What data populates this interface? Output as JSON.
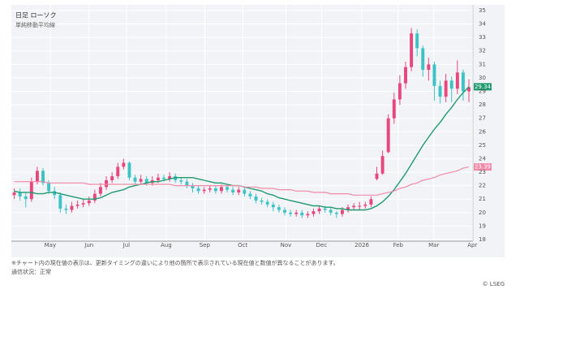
{
  "chart_data": {
    "type": "candlestick",
    "title": "日足 ローソク",
    "subtitle": "単純移動平均線",
    "up_color": "#e8467c",
    "down_color": "#3cc3c6",
    "open": [
      21.3,
      21.5,
      21.2,
      21.0,
      22.3,
      23.1,
      22.2,
      21.6,
      21.3,
      20.3,
      20.2,
      20.5,
      20.6,
      20.7,
      20.9,
      21.4,
      21.9,
      22.4,
      22.7,
      23.4,
      23.7,
      22.6,
      22.3,
      22.5,
      22.2,
      22.4,
      22.6,
      22.5,
      22.7,
      22.4,
      22.3,
      22.0,
      21.8,
      21.6,
      21.7,
      21.8,
      21.6,
      21.9,
      21.7,
      21.5,
      21.7,
      21.4,
      21.2,
      20.9,
      20.8,
      20.6,
      20.4,
      20.2,
      20.0,
      19.9,
      20.0,
      19.8,
      19.9,
      20.1,
      20.3,
      20.2,
      20.0,
      19.9,
      20.2,
      20.4,
      20.5,
      20.5,
      20.6,
      22.5,
      22.9,
      24.5,
      27.0,
      28.4,
      29.6,
      30.8,
      33.3,
      32.2,
      30.6,
      31.0,
      29.4,
      28.6,
      29.8,
      29.2,
      30.4,
      29.0
    ],
    "high": [
      21.8,
      21.8,
      21.5,
      22.6,
      23.4,
      23.3,
      22.4,
      21.9,
      21.5,
      20.6,
      20.8,
      20.9,
      21.0,
      21.2,
      21.7,
      22.2,
      22.7,
      23.0,
      23.7,
      24.0,
      23.8,
      22.8,
      22.8,
      22.7,
      22.7,
      22.9,
      22.8,
      23.0,
      22.9,
      22.6,
      22.5,
      22.2,
      22.0,
      21.9,
      22.0,
      22.0,
      22.1,
      22.1,
      21.9,
      21.9,
      21.9,
      21.6,
      21.4,
      21.1,
      21.0,
      20.8,
      20.6,
      20.4,
      20.2,
      20.2,
      20.2,
      20.1,
      20.3,
      20.5,
      20.5,
      20.4,
      20.1,
      20.4,
      20.6,
      20.7,
      20.8,
      20.8,
      21.2,
      23.4,
      24.6,
      27.3,
      28.9,
      30.2,
      31.2,
      33.7,
      33.6,
      32.4,
      31.5,
      31.2,
      29.8,
      30.3,
      30.1,
      31.3,
      30.6,
      29.9
    ],
    "low": [
      21.0,
      20.9,
      20.4,
      20.8,
      22.1,
      22.0,
      21.4,
      21.0,
      20.0,
      19.9,
      20.0,
      20.3,
      20.4,
      20.5,
      20.7,
      21.2,
      21.7,
      22.2,
      22.5,
      23.2,
      22.4,
      22.1,
      22.1,
      22.0,
      22.0,
      22.2,
      22.3,
      22.3,
      22.2,
      22.1,
      21.8,
      21.5,
      21.4,
      21.4,
      21.5,
      21.4,
      21.4,
      21.5,
      21.3,
      21.3,
      21.2,
      21.0,
      20.7,
      20.6,
      20.4,
      20.1,
      20.0,
      19.8,
      19.7,
      19.7,
      19.6,
      19.6,
      19.7,
      19.9,
      20.0,
      19.8,
      19.6,
      19.7,
      20.0,
      20.2,
      20.2,
      20.3,
      20.4,
      22.4,
      22.8,
      24.4,
      26.6,
      28.0,
      29.2,
      30.5,
      31.6,
      30.1,
      29.8,
      28.3,
      28.1,
      28.2,
      28.2,
      28.8,
      28.3,
      28.2
    ],
    "close": [
      21.5,
      21.2,
      21.0,
      22.3,
      23.1,
      22.2,
      21.6,
      21.3,
      20.3,
      20.2,
      20.5,
      20.6,
      20.7,
      20.9,
      21.4,
      21.9,
      22.4,
      22.7,
      23.4,
      23.7,
      22.6,
      22.3,
      22.5,
      22.2,
      22.4,
      22.6,
      22.5,
      22.7,
      22.4,
      22.3,
      22.0,
      21.8,
      21.6,
      21.7,
      21.8,
      21.6,
      21.9,
      21.7,
      21.5,
      21.7,
      21.4,
      21.2,
      20.9,
      20.8,
      20.6,
      20.4,
      20.2,
      20.0,
      19.9,
      20.0,
      19.8,
      19.9,
      20.1,
      20.3,
      20.2,
      20.0,
      19.9,
      20.2,
      20.4,
      20.5,
      20.5,
      20.6,
      21.0,
      22.9,
      24.2,
      27.0,
      28.4,
      29.6,
      30.8,
      33.3,
      32.2,
      30.6,
      31.0,
      29.4,
      28.6,
      29.8,
      29.2,
      30.4,
      29.0,
      29.3
    ],
    "series": [
      {
        "color": "#1f9a6e",
        "values": [
          21.6,
          21.5,
          21.5,
          21.5,
          21.4,
          21.4,
          21.5,
          21.5,
          21.4,
          21.3,
          21.2,
          21.1,
          21.0,
          21.0,
          21.0,
          21.1,
          21.3,
          21.5,
          21.6,
          21.7,
          21.9,
          22.0,
          22.1,
          22.2,
          22.3,
          22.3,
          22.4,
          22.5,
          22.6,
          22.6,
          22.6,
          22.6,
          22.5,
          22.4,
          22.3,
          22.2,
          22.2,
          22.1,
          22.0,
          22.0,
          21.9,
          21.8,
          21.7,
          21.6,
          21.4,
          21.3,
          21.1,
          21.0,
          20.9,
          20.8,
          20.7,
          20.6,
          20.5,
          20.5,
          20.4,
          20.4,
          20.3,
          20.3,
          20.2,
          20.2,
          20.2,
          20.2,
          20.3,
          20.5,
          20.8,
          21.2,
          21.7,
          22.3,
          22.9,
          23.6,
          24.3,
          25.0,
          25.6,
          26.2,
          26.7,
          27.3,
          27.8,
          28.4,
          28.9,
          29.34
        ]
      },
      {
        "color": "#f08aa8",
        "values": [
          22.3,
          22.3,
          22.3,
          22.3,
          22.3,
          22.3,
          22.2,
          22.2,
          22.2,
          22.2,
          22.2,
          22.2,
          22.2,
          22.1,
          22.1,
          22.1,
          22.1,
          22.1,
          22.1,
          22.1,
          22.1,
          22.1,
          22.1,
          22.1,
          22.1,
          22.1,
          22.1,
          22.1,
          22.0,
          22.0,
          22.0,
          22.0,
          22.0,
          22.0,
          22.0,
          22.0,
          22.0,
          22.0,
          22.0,
          22.0,
          21.9,
          21.9,
          21.9,
          21.8,
          21.8,
          21.8,
          21.7,
          21.7,
          21.7,
          21.6,
          21.6,
          21.6,
          21.5,
          21.5,
          21.5,
          21.4,
          21.4,
          21.4,
          21.4,
          21.3,
          21.3,
          21.3,
          21.3,
          21.3,
          21.4,
          21.5,
          21.6,
          21.8,
          21.9,
          22.1,
          22.2,
          22.4,
          22.5,
          22.6,
          22.8,
          22.9,
          23.0,
          23.1,
          23.3,
          23.39
        ]
      }
    ],
    "xlim": [
      -0.5,
      79.7
    ],
    "xticks": [
      {
        "value": 6.25,
        "label": "May"
      },
      {
        "value": 13.0,
        "label": "Jun"
      },
      {
        "value": 19.5,
        "label": "Jul"
      },
      {
        "value": 26.4,
        "label": "Aug"
      },
      {
        "value": 33.1,
        "label": "Sep"
      },
      {
        "value": 39.7,
        "label": "Oct"
      },
      {
        "value": 47.2,
        "label": "Nov"
      },
      {
        "value": 53.4,
        "label": "Dec"
      },
      {
        "value": 60.4,
        "label": "2026"
      },
      {
        "value": 66.7,
        "label": "Feb"
      },
      {
        "value": 72.9,
        "label": "Mar"
      },
      {
        "value": 79.6,
        "label": "Apr"
      }
    ],
    "ylim": [
      17.88,
      35.42
    ],
    "yticks": [
      18,
      19,
      20,
      21,
      22,
      23,
      24,
      25,
      26,
      27,
      28,
      29,
      30,
      31,
      32,
      33,
      34,
      35
    ],
    "grid": true,
    "notes": [
      "※チャート内の現在値の表示は、更新タイミングの違いにより他の箇所で表示されている現在値と数値が異なることがあります。",
      "通信状況：正常"
    ],
    "source": "© LSEG"
  }
}
